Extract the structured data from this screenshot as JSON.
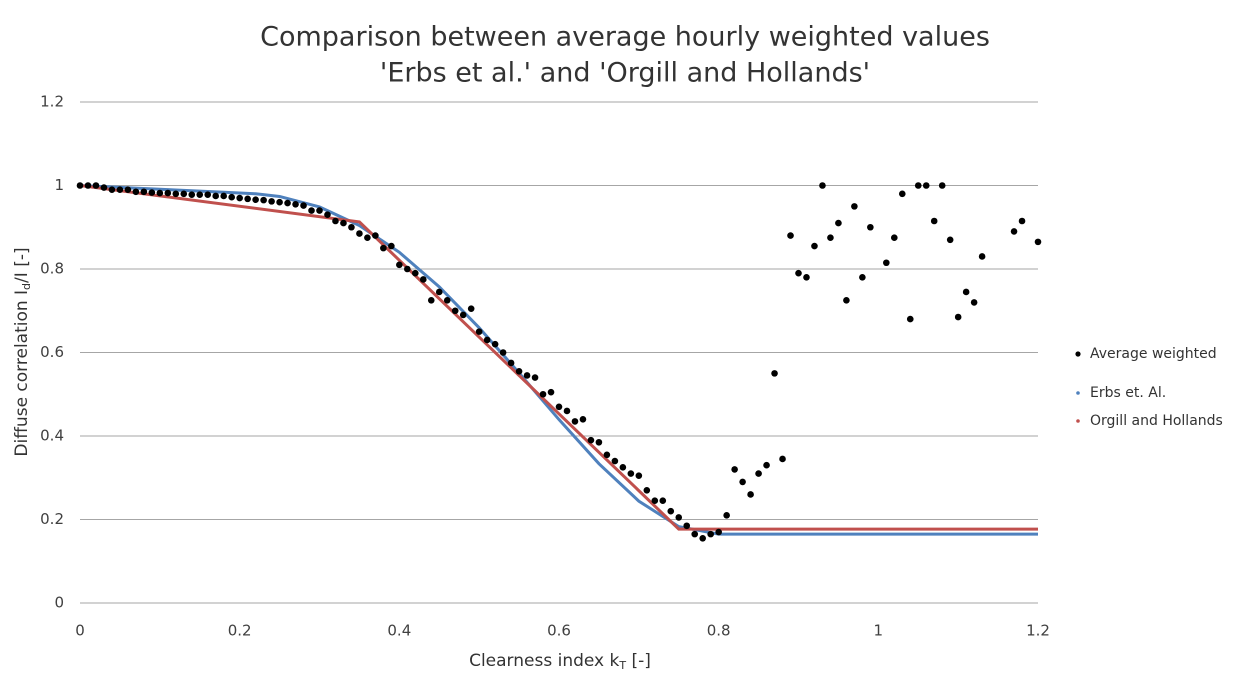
{
  "chart_data": {
    "type": "scatter",
    "title": [
      "Comparison between average hourly weighted values",
      "'Erbs et al.' and 'Orgill and Hollands'"
    ],
    "xlabel": [
      "Clearness index k",
      "T",
      " [-]"
    ],
    "ylabel": [
      "Diffuse correlation I",
      "d",
      "/I [-]"
    ],
    "xlim": [
      0,
      1.2
    ],
    "ylim": [
      0,
      1.2
    ],
    "xticks": [
      0,
      0.2,
      0.4,
      0.6,
      0.8,
      1,
      1.2
    ],
    "yticks": [
      0,
      0.2,
      0.4,
      0.6,
      0.8,
      1,
      1.2
    ],
    "grid": true,
    "legend": "right",
    "series": [
      {
        "name": "Average weighted",
        "style": "markers",
        "color": "#000000",
        "x": [
          0,
          0.01,
          0.02,
          0.03,
          0.04,
          0.05,
          0.06,
          0.07,
          0.08,
          0.09,
          0.1,
          0.11,
          0.12,
          0.13,
          0.14,
          0.15,
          0.16,
          0.17,
          0.18,
          0.19,
          0.2,
          0.21,
          0.22,
          0.23,
          0.24,
          0.25,
          0.26,
          0.27,
          0.28,
          0.29,
          0.3,
          0.31,
          0.32,
          0.33,
          0.34,
          0.35,
          0.36,
          0.37,
          0.38,
          0.39,
          0.4,
          0.41,
          0.42,
          0.43,
          0.44,
          0.45,
          0.46,
          0.47,
          0.48,
          0.49,
          0.5,
          0.51,
          0.52,
          0.53,
          0.54,
          0.55,
          0.56,
          0.57,
          0.58,
          0.59,
          0.6,
          0.61,
          0.62,
          0.63,
          0.64,
          0.65,
          0.66,
          0.67,
          0.68,
          0.69,
          0.7,
          0.71,
          0.72,
          0.73,
          0.74,
          0.75,
          0.76,
          0.77,
          0.78,
          0.79,
          0.8,
          0.81,
          0.82,
          0.83,
          0.84,
          0.85,
          0.86,
          0.87,
          0.88,
          0.89,
          0.9,
          0.91,
          0.92,
          0.93,
          0.94,
          0.95,
          0.96,
          0.97,
          0.98,
          0.99,
          1.01,
          1.02,
          1.03,
          1.04,
          1.05,
          1.06,
          1.07,
          1.08,
          1.09,
          1.1,
          1.11,
          1.12,
          1.13,
          1.17,
          1.18,
          1.2
        ],
        "values": [
          1,
          1,
          1,
          0.995,
          0.99,
          0.99,
          0.99,
          0.985,
          0.985,
          0.983,
          0.982,
          0.982,
          0.98,
          0.98,
          0.978,
          0.978,
          0.978,
          0.975,
          0.975,
          0.972,
          0.97,
          0.968,
          0.966,
          0.965,
          0.962,
          0.96,
          0.958,
          0.955,
          0.952,
          0.94,
          0.94,
          0.93,
          0.915,
          0.91,
          0.9,
          0.885,
          0.875,
          0.88,
          0.85,
          0.855,
          0.81,
          0.8,
          0.79,
          0.775,
          0.725,
          0.745,
          0.725,
          0.7,
          0.69,
          0.705,
          0.65,
          0.63,
          0.62,
          0.6,
          0.575,
          0.555,
          0.545,
          0.54,
          0.5,
          0.505,
          0.47,
          0.46,
          0.435,
          0.44,
          0.39,
          0.385,
          0.355,
          0.34,
          0.325,
          0.31,
          0.305,
          0.27,
          0.245,
          0.245,
          0.22,
          0.205,
          0.185,
          0.165,
          0.155,
          0.165,
          0.17,
          0.21,
          0.32,
          0.29,
          0.26,
          0.31,
          0.33,
          0.55,
          0.345,
          0.88,
          0.79,
          0.78,
          0.855,
          1,
          0.875,
          0.91,
          0.725,
          0.95,
          0.78,
          0.9,
          0.815,
          0.875,
          0.98,
          0.68,
          1,
          1,
          0.915,
          1,
          0.87,
          0.685,
          0.745,
          0.72,
          0.83,
          0.89,
          0.915,
          0.865
        ]
      },
      {
        "name": "Erbs et. Al.",
        "style": "line",
        "color": "#4f81bd",
        "x": [
          0,
          0.1,
          0.2,
          0.22,
          0.25,
          0.3,
          0.35,
          0.4,
          0.45,
          0.5,
          0.55,
          0.6,
          0.65,
          0.7,
          0.75,
          0.8,
          1.2
        ],
        "values": [
          1,
          0.991,
          0.982,
          0.9802,
          0.9737,
          0.9486,
          0.9042,
          0.84,
          0.7572,
          0.6592,
          0.5509,
          0.4394,
          0.3337,
          0.244,
          0.183,
          0.165,
          0.165
        ]
      },
      {
        "name": "Orgill and Hollands",
        "style": "line",
        "color": "#c0504d",
        "x": [
          0,
          0.35,
          0.75,
          1.2
        ],
        "values": [
          1,
          0.9129,
          0.177,
          0.177
        ]
      }
    ]
  }
}
